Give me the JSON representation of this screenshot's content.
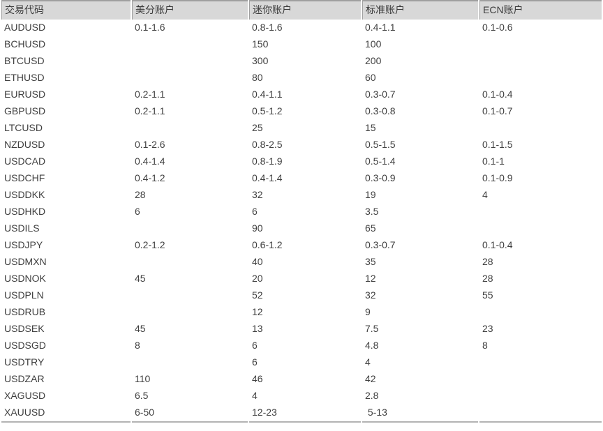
{
  "table": {
    "columns": [
      {
        "label": "交易代码"
      },
      {
        "label": "美分账户"
      },
      {
        "label": "迷你账户"
      },
      {
        "label": "标准账户"
      },
      {
        "label": "ECN账户"
      }
    ],
    "rows": [
      {
        "symbol": "AUDUSD",
        "cent": "0.1-1.6",
        "mini": "0.8-1.6",
        "standard": "0.4-1.1",
        "ecn": "0.1-0.6"
      },
      {
        "symbol": "BCHUSD",
        "cent": "",
        "mini": "150",
        "standard": "100",
        "ecn": ""
      },
      {
        "symbol": "BTCUSD",
        "cent": "",
        "mini": "300",
        "standard": "200",
        "ecn": ""
      },
      {
        "symbol": "ETHUSD",
        "cent": "",
        "mini": "80",
        "standard": "60",
        "ecn": ""
      },
      {
        "symbol": "EURUSD",
        "cent": "0.2-1.1",
        "mini": "0.4-1.1",
        "standard": "0.3-0.7",
        "ecn": "0.1-0.4"
      },
      {
        "symbol": "GBPUSD",
        "cent": "0.2-1.1",
        "mini": "0.5-1.2",
        "standard": "0.3-0.8",
        "ecn": "0.1-0.7"
      },
      {
        "symbol": "LTCUSD",
        "cent": "",
        "mini": "25",
        "standard": "15",
        "ecn": ""
      },
      {
        "symbol": "NZDUSD",
        "cent": "0.1-2.6",
        "mini": "0.8-2.5",
        "standard": "0.5-1.5",
        "ecn": "0.1-1.5"
      },
      {
        "symbol": "USDCAD",
        "cent": "0.4-1.4",
        "mini": "0.8-1.9",
        "standard": "0.5-1.4",
        "ecn": "0.1-1"
      },
      {
        "symbol": "USDCHF",
        "cent": "0.4-1.2",
        "mini": "0.4-1.4",
        "standard": "0.3-0.9",
        "ecn": "0.1-0.9"
      },
      {
        "symbol": "USDDKK",
        "cent": "28",
        "mini": "32",
        "standard": "19",
        "ecn": "4"
      },
      {
        "symbol": "USDHKD",
        "cent": "6",
        "mini": "6",
        "standard": "3.5",
        "ecn": ""
      },
      {
        "symbol": "USDILS",
        "cent": "",
        "mini": "90",
        "standard": "65",
        "ecn": ""
      },
      {
        "symbol": "USDJPY",
        "cent": "0.2-1.2",
        "mini": "0.6-1.2",
        "standard": "0.3-0.7",
        "ecn": "0.1-0.4"
      },
      {
        "symbol": "USDMXN",
        "cent": "",
        "mini": "40",
        "standard": "35",
        "ecn": "28"
      },
      {
        "symbol": "USDNOK",
        "cent": "45",
        "mini": "20",
        "standard": "12",
        "ecn": "28"
      },
      {
        "symbol": "USDPLN",
        "cent": "",
        "mini": "52",
        "standard": "32",
        "ecn": "55"
      },
      {
        "symbol": "USDRUB",
        "cent": "",
        "mini": "12",
        "standard": "9",
        "ecn": ""
      },
      {
        "symbol": "USDSEK",
        "cent": "45",
        "mini": "13",
        "standard": "7.5",
        "ecn": "23"
      },
      {
        "symbol": "USDSGD",
        "cent": "8",
        "mini": "6",
        "standard": "4.8",
        "ecn": "8"
      },
      {
        "symbol": "USDTRY",
        "cent": "",
        "mini": "6",
        "standard": "4",
        "ecn": ""
      },
      {
        "symbol": "USDZAR",
        "cent": "110",
        "mini": "46",
        "standard": "42",
        "ecn": ""
      },
      {
        "symbol": "XAGUSD",
        "cent": "6.5",
        "mini": "4",
        "standard": "2.8",
        "ecn": ""
      },
      {
        "symbol": "XAUUSD",
        "cent": "6-50",
        "mini": "12-23",
        "standard": " 5-13",
        "ecn": ""
      }
    ]
  },
  "colors": {
    "header_background": "#d8d8d8",
    "header_border": "#9f9f9f",
    "table_bottom_border": "#b3b3b3",
    "text": "#404040",
    "page_background": "#ffffff"
  }
}
